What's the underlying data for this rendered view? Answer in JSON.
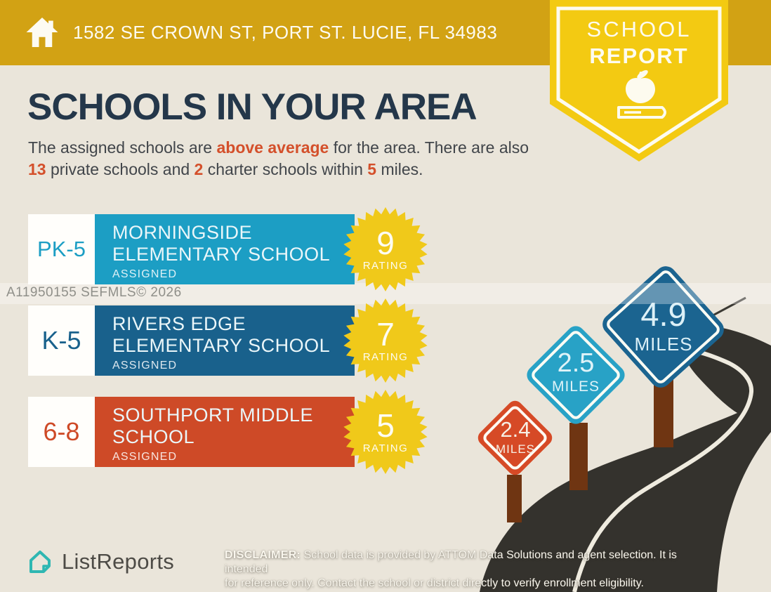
{
  "header": {
    "address": "1582 SE CROWN ST, PORT ST. LUCIE, FL 34983"
  },
  "badge": {
    "line1": "SCHOOL",
    "line2": "REPORT"
  },
  "title": "SCHOOLS IN YOUR AREA",
  "summary": {
    "part1": "The assigned schools are ",
    "highlight1": "above average",
    "part2": " for the area. There are also ",
    "highlight2": "13",
    "part3": " private schools and ",
    "highlight3": "2",
    "part4": " charter schools within ",
    "highlight4": "5",
    "part5": " miles."
  },
  "watermark": "A11950155  SEFMLS© 2026",
  "schools": [
    {
      "grades": "PK-5",
      "name_line1": "MORNINGSIDE",
      "name_line2": "ELEMENTARY SCHOOL",
      "status": "ASSIGNED",
      "rating": "9",
      "rating_label": "RATING",
      "color": "#1C9EC4"
    },
    {
      "grades": "K-5",
      "name_line1": "RIVERS EDGE",
      "name_line2": "ELEMENTARY SCHOOL",
      "status": "ASSIGNED",
      "rating": "7",
      "rating_label": "RATING",
      "color": "#19618C"
    },
    {
      "grades": "6-8",
      "name_line1": "SOUTHPORT MIDDLE",
      "name_line2": "SCHOOL",
      "status": "ASSIGNED",
      "rating": "5",
      "rating_label": "RATING",
      "color": "#CE4A27"
    }
  ],
  "signs": [
    {
      "distance": "2.4",
      "unit": "MILES",
      "color": "#D64A26"
    },
    {
      "distance": "2.5",
      "unit": "MILES",
      "color": "#28A2C6"
    },
    {
      "distance": "4.9",
      "unit": "MILES",
      "color": "#1B6490"
    }
  ],
  "footer": {
    "brand": "ListReports",
    "disclaimer_label": "DISCLAIMER:",
    "disclaimer_rest1": " School data is provided by ATTOM Data Solutions and agent selection. It is intended",
    "disclaimer_line2": "for reference only. Contact the school or district directly to verify enrollment eligibility."
  },
  "colors": {
    "header_gold": "#D2A214",
    "ribbon_yellow": "#F3CA12",
    "star_yellow": "#F0C91A",
    "background": "#EAE5DA",
    "heading_navy": "#24374A",
    "accent_orange": "#D4502B",
    "road_dark": "#34322D",
    "post_brown": "#6F3512"
  }
}
